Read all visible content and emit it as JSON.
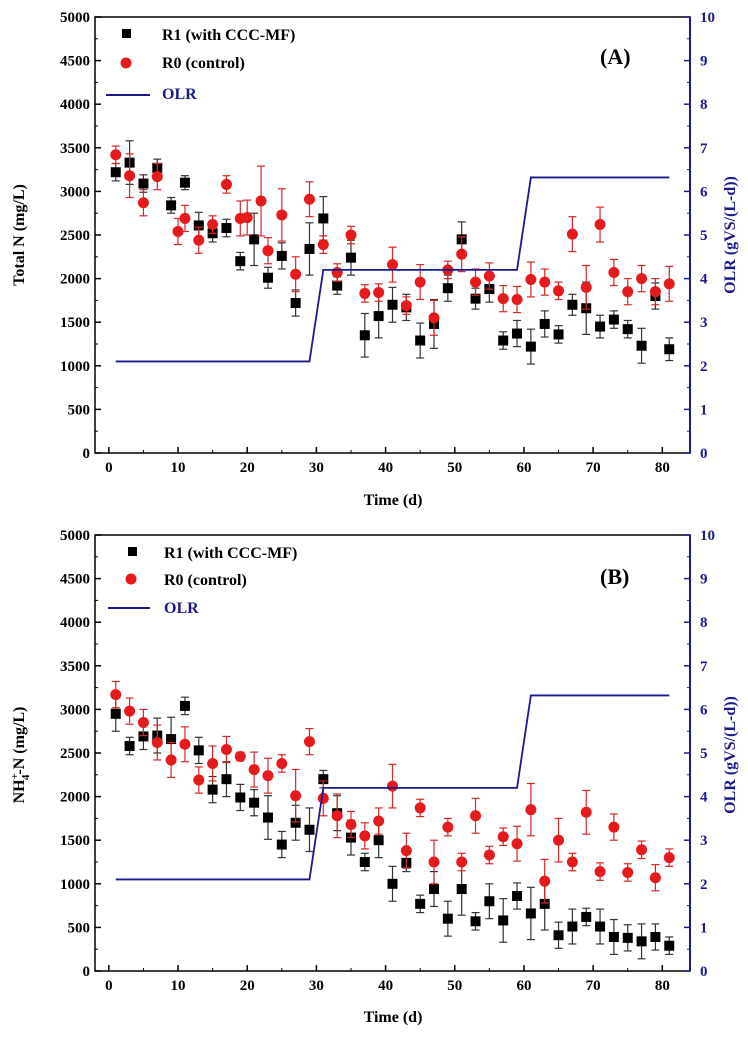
{
  "colors": {
    "r1": "#000000",
    "r0": "#e41a1c",
    "r0_err": "#d62728",
    "olr": "#1a1a8c",
    "axis": "#000000"
  },
  "chart_data": [
    {
      "type": "scatter",
      "panel_label": "(A)",
      "xlabel": "Time (d)",
      "ylabel": "Total N (mg/L)",
      "y2label": "OLR (gVS/(L-d))",
      "xlim": [
        -2,
        84
      ],
      "ylim": [
        0,
        5000
      ],
      "y2lim": [
        0,
        10
      ],
      "xticks": [
        "0",
        "10",
        "20",
        "30",
        "40",
        "50",
        "60",
        "70",
        "80"
      ],
      "yticks": [
        "0",
        "500",
        "1000",
        "1500",
        "2000",
        "2500",
        "3000",
        "3500",
        "4000",
        "4500",
        "5000"
      ],
      "y2ticks": [
        "0",
        "1",
        "2",
        "3",
        "4",
        "5",
        "6",
        "7",
        "8",
        "9",
        "10"
      ],
      "legend": [
        "R1 (with CCC-MF)",
        "R0 (control)",
        "OLR"
      ],
      "legend_position": "top-left",
      "series": [
        {
          "name": "R1 (with CCC-MF)",
          "marker": "square",
          "x": [
            1,
            3,
            5,
            7,
            9,
            11,
            13,
            15,
            17,
            19,
            21,
            23,
            25,
            27,
            29,
            31,
            33,
            35,
            37,
            39,
            41,
            43,
            45,
            47,
            49,
            51,
            53,
            55,
            57,
            59,
            61,
            63,
            65,
            67,
            69,
            71,
            73,
            75,
            77,
            79,
            81
          ],
          "y": [
            3220,
            3330,
            3090,
            3270,
            2840,
            3100,
            2610,
            2520,
            2580,
            2200,
            2450,
            2010,
            2260,
            1720,
            2340,
            2690,
            1920,
            2240,
            1350,
            1570,
            1700,
            1670,
            1290,
            1480,
            1890,
            2450,
            1770,
            1880,
            1290,
            1370,
            1220,
            1480,
            1360,
            1700,
            1660,
            1450,
            1530,
            1420,
            1230,
            1800,
            1190
          ],
          "err": [
            100,
            250,
            100,
            100,
            90,
            80,
            150,
            100,
            100,
            100,
            300,
            120,
            150,
            150,
            300,
            250,
            100,
            200,
            250,
            250,
            200,
            150,
            200,
            280,
            150,
            200,
            120,
            150,
            100,
            150,
            200,
            150,
            100,
            120,
            300,
            130,
            100,
            100,
            200,
            150,
            130
          ]
        },
        {
          "name": "R0 (control)",
          "marker": "circle",
          "x": [
            1,
            3,
            5,
            7,
            10,
            11,
            13,
            15,
            17,
            19,
            20,
            22,
            23,
            25,
            27,
            29,
            31,
            33,
            35,
            37,
            39,
            41,
            43,
            45,
            47,
            49,
            51,
            53,
            55,
            57,
            59,
            61,
            63,
            65,
            67,
            69,
            71,
            73,
            75,
            77,
            79,
            81
          ],
          "y": [
            3420,
            3180,
            2870,
            3170,
            2540,
            2690,
            2440,
            2620,
            3080,
            2690,
            2700,
            2890,
            2320,
            2730,
            2050,
            2910,
            2390,
            2070,
            2500,
            1830,
            1840,
            2160,
            1690,
            1960,
            1550,
            2100,
            2280,
            1960,
            2030,
            1770,
            1760,
            1990,
            1960,
            1860,
            2510,
            1900,
            2620,
            2070,
            1850,
            2000,
            1850,
            1940
          ],
          "err": [
            100,
            250,
            150,
            150,
            150,
            150,
            150,
            100,
            100,
            200,
            200,
            400,
            150,
            300,
            200,
            200,
            100,
            100,
            100,
            100,
            100,
            200,
            100,
            200,
            200,
            100,
            200,
            150,
            150,
            150,
            150,
            200,
            150,
            100,
            200,
            250,
            200,
            150,
            150,
            150,
            150,
            200
          ]
        },
        {
          "name": "OLR",
          "axis": "y2",
          "line": "step",
          "x": [
            1,
            29,
            31,
            59,
            61,
            81
          ],
          "y": [
            2.1,
            2.1,
            4.2,
            4.2,
            6.32,
            6.32
          ]
        }
      ]
    },
    {
      "type": "scatter",
      "panel_label": "(B)",
      "xlabel": "Time (d)",
      "ylabel_main": "NH",
      "ylabel_sup": "+",
      "ylabel_sub": "4",
      "ylabel_tail": "-N (mg/L)",
      "y2label": "OLR (gVS/(L-d))",
      "xlim": [
        -2,
        84
      ],
      "ylim": [
        0,
        5000
      ],
      "y2lim": [
        0,
        10
      ],
      "xticks": [
        "0",
        "10",
        "20",
        "30",
        "40",
        "50",
        "60",
        "70",
        "80"
      ],
      "yticks": [
        "0",
        "500",
        "1000",
        "1500",
        "2000",
        "2500",
        "3000",
        "3500",
        "4000",
        "4500",
        "5000"
      ],
      "y2ticks": [
        "0",
        "1",
        "2",
        "3",
        "4",
        "5",
        "6",
        "7",
        "8",
        "9",
        "10"
      ],
      "legend": [
        "R1 (with CCC-MF)",
        "R0 (control)",
        "OLR"
      ],
      "legend_position": "top-left",
      "series": [
        {
          "name": "R1 (with CCC-MF)",
          "marker": "square",
          "x": [
            1,
            3,
            5,
            7,
            9,
            11,
            13,
            15,
            17,
            19,
            21,
            23,
            25,
            27,
            29,
            31,
            33,
            35,
            37,
            39,
            41,
            43,
            45,
            47,
            49,
            51,
            53,
            55,
            57,
            59,
            61,
            63,
            65,
            67,
            69,
            71,
            73,
            75,
            77,
            79,
            81
          ],
          "y": [
            2950,
            2580,
            2690,
            2700,
            2660,
            3040,
            2530,
            2080,
            2200,
            1990,
            1930,
            1760,
            1450,
            1700,
            1620,
            2200,
            1810,
            1530,
            1250,
            1500,
            1000,
            1240,
            770,
            940,
            600,
            940,
            570,
            800,
            580,
            860,
            660,
            770,
            410,
            510,
            620,
            510,
            390,
            380,
            340,
            390,
            290
          ],
          "err": [
            200,
            100,
            150,
            200,
            250,
            100,
            150,
            150,
            200,
            150,
            150,
            250,
            150,
            200,
            250,
            100,
            200,
            200,
            100,
            200,
            200,
            100,
            100,
            200,
            200,
            300,
            100,
            200,
            250,
            150,
            300,
            300,
            150,
            200,
            100,
            200,
            200,
            150,
            200,
            150,
            100
          ]
        },
        {
          "name": "R0 (control)",
          "marker": "circle",
          "x": [
            1,
            3,
            5,
            7,
            9,
            11,
            13,
            15,
            17,
            19,
            21,
            23,
            25,
            27,
            29,
            31,
            33,
            35,
            37,
            39,
            41,
            43,
            45,
            47,
            49,
            51,
            53,
            55,
            57,
            59,
            61,
            63,
            65,
            67,
            69,
            71,
            73,
            75,
            77,
            79,
            81
          ],
          "y": [
            3170,
            2980,
            2850,
            2620,
            2420,
            2600,
            2190,
            2380,
            2540,
            2460,
            2310,
            2240,
            2380,
            2010,
            2630,
            1980,
            1780,
            1680,
            1550,
            1720,
            2120,
            1380,
            1870,
            1250,
            1650,
            1250,
            1780,
            1330,
            1540,
            1460,
            1850,
            1030,
            1500,
            1250,
            1820,
            1140,
            1650,
            1130,
            1390,
            1070,
            1300
          ],
          "err": [
            150,
            150,
            150,
            200,
            200,
            200,
            150,
            200,
            150,
            50,
            200,
            200,
            100,
            300,
            150,
            200,
            250,
            150,
            150,
            150,
            250,
            200,
            100,
            250,
            100,
            100,
            200,
            100,
            100,
            200,
            300,
            250,
            250,
            100,
            250,
            100,
            150,
            100,
            100,
            150,
            100
          ]
        },
        {
          "name": "OLR",
          "axis": "y2",
          "line": "step",
          "x": [
            1,
            29,
            31,
            59,
            61,
            81
          ],
          "y": [
            2.1,
            2.1,
            4.2,
            4.2,
            6.32,
            6.32
          ]
        }
      ]
    }
  ]
}
